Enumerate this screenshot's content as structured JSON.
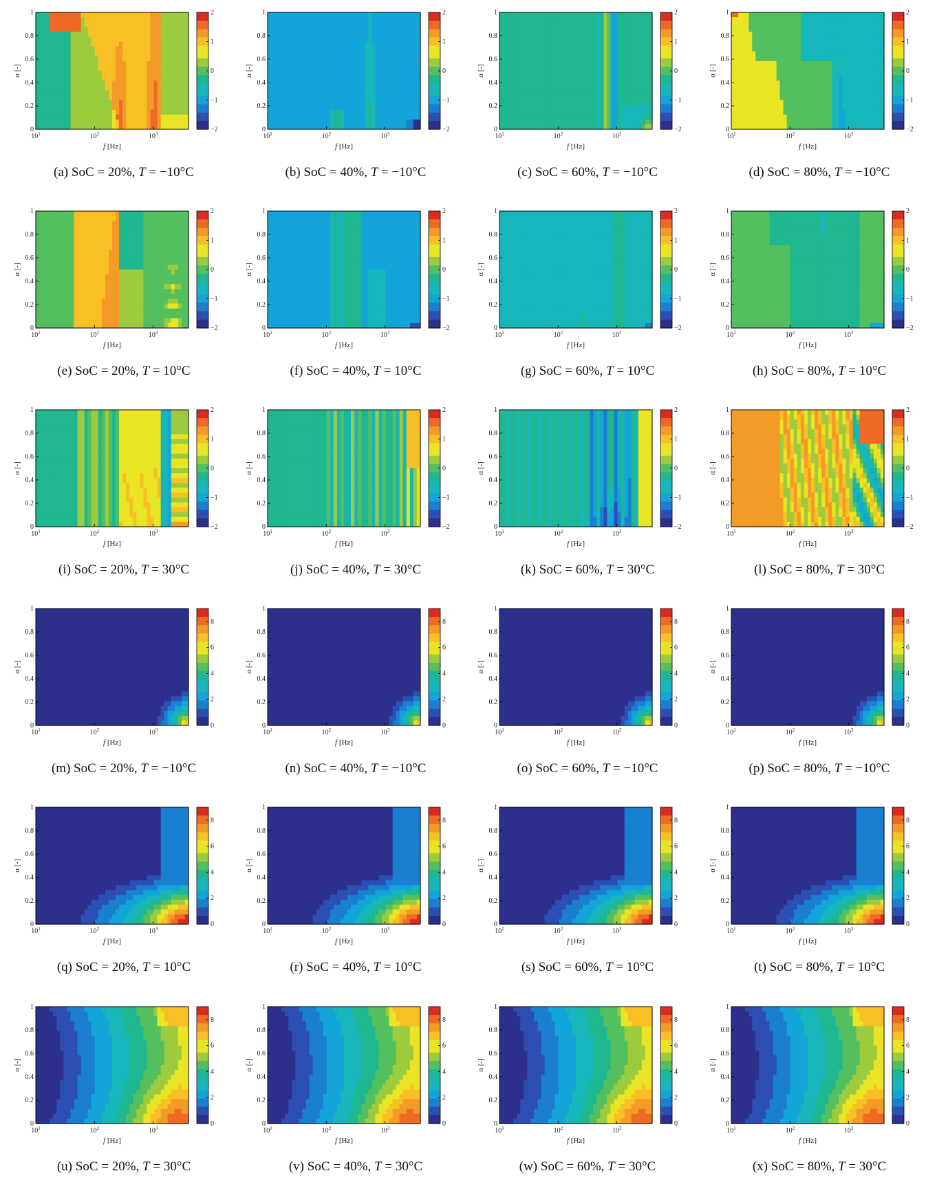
{
  "figure": {
    "rows": 6,
    "cols": 4
  },
  "colormap": [
    "#2c2f8c",
    "#2b4fb3",
    "#1a7fd1",
    "#13a5d9",
    "#17b6ba",
    "#1fb78f",
    "#53bf5e",
    "#9ccc3e",
    "#e9e525",
    "#f8c025",
    "#f39a27",
    "#ee6a25",
    "#d92b1f"
  ],
  "chart_data": [
    {
      "type": "heatmap",
      "label": "(a)",
      "soc": "20%",
      "temp": "−10°C",
      "xlabel": "f [Hz]",
      "ylabel": "α [-]",
      "xlim": [
        10,
        4000
      ],
      "xscale": "log",
      "ylim": [
        0,
        1
      ],
      "clim": [
        -2,
        2
      ],
      "cbar_ticks": [
        "2",
        "1",
        "0",
        "−1",
        "−2"
      ],
      "pattern": "a"
    },
    {
      "type": "heatmap",
      "label": "(b)",
      "soc": "40%",
      "temp": "−10°C",
      "xlabel": "f [Hz]",
      "ylabel": "α [-]",
      "xlim": [
        10,
        4000
      ],
      "xscale": "log",
      "ylim": [
        0,
        1
      ],
      "clim": [
        -2,
        2
      ],
      "cbar_ticks": [
        "2",
        "1",
        "0",
        "−1",
        "−2"
      ],
      "pattern": "b"
    },
    {
      "type": "heatmap",
      "label": "(c)",
      "soc": "60%",
      "temp": "−10°C",
      "xlabel": "f [Hz]",
      "ylabel": "α [-]",
      "xlim": [
        10,
        4000
      ],
      "xscale": "log",
      "ylim": [
        0,
        1
      ],
      "clim": [
        -2,
        2
      ],
      "cbar_ticks": [
        "2",
        "1",
        "0",
        "−1",
        "−2"
      ],
      "pattern": "c"
    },
    {
      "type": "heatmap",
      "label": "(d)",
      "soc": "80%",
      "temp": "−10°C",
      "xlabel": "f [Hz]",
      "ylabel": "α [-]",
      "xlim": [
        10,
        4000
      ],
      "xscale": "log",
      "ylim": [
        0,
        1
      ],
      "clim": [
        -2,
        2
      ],
      "cbar_ticks": [
        "2",
        "1",
        "0",
        "−1",
        "−2"
      ],
      "pattern": "d"
    },
    {
      "type": "heatmap",
      "label": "(e)",
      "soc": "20%",
      "temp": "10°C",
      "xlabel": "f [Hz]",
      "ylabel": "α [-]",
      "xlim": [
        10,
        4000
      ],
      "xscale": "log",
      "ylim": [
        0,
        1
      ],
      "clim": [
        -2,
        2
      ],
      "cbar_ticks": [
        "2",
        "1",
        "0",
        "−1",
        "−2"
      ],
      "pattern": "e"
    },
    {
      "type": "heatmap",
      "label": "(f)",
      "soc": "40%",
      "temp": "10°C",
      "xlabel": "f [Hz]",
      "ylabel": "α [-]",
      "xlim": [
        10,
        4000
      ],
      "xscale": "log",
      "ylim": [
        0,
        1
      ],
      "clim": [
        -2,
        2
      ],
      "cbar_ticks": [
        "2",
        "1",
        "0",
        "−1",
        "−2"
      ],
      "pattern": "f"
    },
    {
      "type": "heatmap",
      "label": "(g)",
      "soc": "60%",
      "temp": "10°C",
      "xlabel": "f [Hz]",
      "ylabel": "α [-]",
      "xlim": [
        10,
        4000
      ],
      "xscale": "log",
      "ylim": [
        0,
        1
      ],
      "clim": [
        -2,
        2
      ],
      "cbar_ticks": [
        "2",
        "1",
        "0",
        "−1",
        "−2"
      ],
      "pattern": "g"
    },
    {
      "type": "heatmap",
      "label": "(h)",
      "soc": "80%",
      "temp": "10°C",
      "xlabel": "f [Hz]",
      "ylabel": "α [-]",
      "xlim": [
        10,
        4000
      ],
      "xscale": "log",
      "ylim": [
        0,
        1
      ],
      "clim": [
        -2,
        2
      ],
      "cbar_ticks": [
        "2",
        "1",
        "0",
        "−1",
        "−2"
      ],
      "pattern": "h"
    },
    {
      "type": "heatmap",
      "label": "(i)",
      "soc": "20%",
      "temp": "30°C",
      "xlabel": "f [Hz]",
      "ylabel": "α [-]",
      "xlim": [
        10,
        4000
      ],
      "xscale": "log",
      "ylim": [
        0,
        1
      ],
      "clim": [
        -2,
        2
      ],
      "cbar_ticks": [
        "2",
        "1",
        "0",
        "−1",
        "−2"
      ],
      "pattern": "i"
    },
    {
      "type": "heatmap",
      "label": "(j)",
      "soc": "40%",
      "temp": "30°C",
      "xlabel": "f [Hz]",
      "ylabel": "α [-]",
      "xlim": [
        10,
        4000
      ],
      "xscale": "log",
      "ylim": [
        0,
        1
      ],
      "clim": [
        -2,
        2
      ],
      "cbar_ticks": [
        "2",
        "1",
        "0",
        "−1",
        "−2"
      ],
      "pattern": "j"
    },
    {
      "type": "heatmap",
      "label": "(k)",
      "soc": "60%",
      "temp": "30°C",
      "xlabel": "f [Hz]",
      "ylabel": "α [-]",
      "xlim": [
        10,
        4000
      ],
      "xscale": "log",
      "ylim": [
        0,
        1
      ],
      "clim": [
        -2,
        2
      ],
      "cbar_ticks": [
        "2",
        "1",
        "0",
        "−1",
        "−2"
      ],
      "pattern": "k"
    },
    {
      "type": "heatmap",
      "label": "(l)",
      "soc": "80%",
      "temp": "30°C",
      "xlabel": "f [Hz]",
      "ylabel": "α [-]",
      "xlim": [
        10,
        4000
      ],
      "xscale": "log",
      "ylim": [
        0,
        1
      ],
      "clim": [
        -2,
        2
      ],
      "cbar_ticks": [
        "2",
        "1",
        "0",
        "−1",
        "−2"
      ],
      "pattern": "l"
    },
    {
      "type": "heatmap",
      "label": "(m)",
      "soc": "20%",
      "temp": "−10°C",
      "xlabel": "f [Hz]",
      "ylabel": "α [-]",
      "xlim": [
        10,
        4000
      ],
      "xscale": "log",
      "ylim": [
        0,
        1
      ],
      "clim": [
        0,
        9
      ],
      "cbar_ticks": [
        "8",
        "6",
        "4",
        "2",
        "0"
      ],
      "pattern": "m"
    },
    {
      "type": "heatmap",
      "label": "(n)",
      "soc": "40%",
      "temp": "−10°C",
      "xlabel": "f [Hz]",
      "ylabel": "α [-]",
      "xlim": [
        10,
        4000
      ],
      "xscale": "log",
      "ylim": [
        0,
        1
      ],
      "clim": [
        0,
        9
      ],
      "cbar_ticks": [
        "8",
        "6",
        "4",
        "2",
        "0"
      ],
      "pattern": "m"
    },
    {
      "type": "heatmap",
      "label": "(o)",
      "soc": "60%",
      "temp": "−10°C",
      "xlabel": "f [Hz]",
      "ylabel": "α [-]",
      "xlim": [
        10,
        4000
      ],
      "xscale": "log",
      "ylim": [
        0,
        1
      ],
      "clim": [
        0,
        9
      ],
      "cbar_ticks": [
        "8",
        "6",
        "4",
        "2",
        "0"
      ],
      "pattern": "m"
    },
    {
      "type": "heatmap",
      "label": "(p)",
      "soc": "80%",
      "temp": "−10°C",
      "xlabel": "f [Hz]",
      "ylabel": "α [-]",
      "xlim": [
        10,
        4000
      ],
      "xscale": "log",
      "ylim": [
        0,
        1
      ],
      "clim": [
        0,
        9
      ],
      "cbar_ticks": [
        "8",
        "6",
        "4",
        "2",
        "0"
      ],
      "pattern": "m"
    },
    {
      "type": "heatmap",
      "label": "(q)",
      "soc": "20%",
      "temp": "10°C",
      "xlabel": "f [Hz]",
      "ylabel": "α [-]",
      "xlim": [
        10,
        4000
      ],
      "xscale": "log",
      "ylim": [
        0,
        1
      ],
      "clim": [
        0,
        9
      ],
      "cbar_ticks": [
        "8",
        "6",
        "4",
        "2",
        "0"
      ],
      "pattern": "q"
    },
    {
      "type": "heatmap",
      "label": "(r)",
      "soc": "40%",
      "temp": "10°C",
      "xlabel": "f [Hz]",
      "ylabel": "α [-]",
      "xlim": [
        10,
        4000
      ],
      "xscale": "log",
      "ylim": [
        0,
        1
      ],
      "clim": [
        0,
        9
      ],
      "cbar_ticks": [
        "8",
        "6",
        "4",
        "2",
        "0"
      ],
      "pattern": "q"
    },
    {
      "type": "heatmap",
      "label": "(s)",
      "soc": "60%",
      "temp": "10°C",
      "xlabel": "f [Hz]",
      "ylabel": "α [-]",
      "xlim": [
        10,
        4000
      ],
      "xscale": "log",
      "ylim": [
        0,
        1
      ],
      "clim": [
        0,
        9
      ],
      "cbar_ticks": [
        "8",
        "6",
        "4",
        "2",
        "0"
      ],
      "pattern": "q"
    },
    {
      "type": "heatmap",
      "label": "(t)",
      "soc": "80%",
      "temp": "10°C",
      "xlabel": "f [Hz]",
      "ylabel": "α [-]",
      "xlim": [
        10,
        4000
      ],
      "xscale": "log",
      "ylim": [
        0,
        1
      ],
      "clim": [
        0,
        9
      ],
      "cbar_ticks": [
        "8",
        "6",
        "4",
        "2",
        "0"
      ],
      "pattern": "q"
    },
    {
      "type": "heatmap",
      "label": "(u)",
      "soc": "20%",
      "temp": "30°C",
      "xlabel": "f [Hz]",
      "ylabel": "α [-]",
      "xlim": [
        10,
        4000
      ],
      "xscale": "log",
      "ylim": [
        0,
        1
      ],
      "clim": [
        0,
        9
      ],
      "cbar_ticks": [
        "8",
        "6",
        "4",
        "2",
        "0"
      ],
      "pattern": "u"
    },
    {
      "type": "heatmap",
      "label": "(v)",
      "soc": "40%",
      "temp": "30°C",
      "xlabel": "f [Hz]",
      "ylabel": "α [-]",
      "xlim": [
        10,
        4000
      ],
      "xscale": "log",
      "ylim": [
        0,
        1
      ],
      "clim": [
        0,
        9
      ],
      "cbar_ticks": [
        "8",
        "6",
        "4",
        "2",
        "0"
      ],
      "pattern": "u"
    },
    {
      "type": "heatmap",
      "label": "(w)",
      "soc": "60%",
      "temp": "30°C",
      "xlabel": "f [Hz]",
      "ylabel": "α [-]",
      "xlim": [
        10,
        4000
      ],
      "xscale": "log",
      "ylim": [
        0,
        1
      ],
      "clim": [
        0,
        9
      ],
      "cbar_ticks": [
        "8",
        "6",
        "4",
        "2",
        "0"
      ],
      "pattern": "u"
    },
    {
      "type": "heatmap",
      "label": "(x)",
      "soc": "80%",
      "temp": "30°C",
      "xlabel": "f [Hz]",
      "ylabel": "α [-]",
      "xlim": [
        10,
        4000
      ],
      "xscale": "log",
      "ylim": [
        0,
        1
      ],
      "clim": [
        0,
        9
      ],
      "cbar_ticks": [
        "8",
        "6",
        "4",
        "2",
        "0"
      ],
      "pattern": "u"
    }
  ]
}
